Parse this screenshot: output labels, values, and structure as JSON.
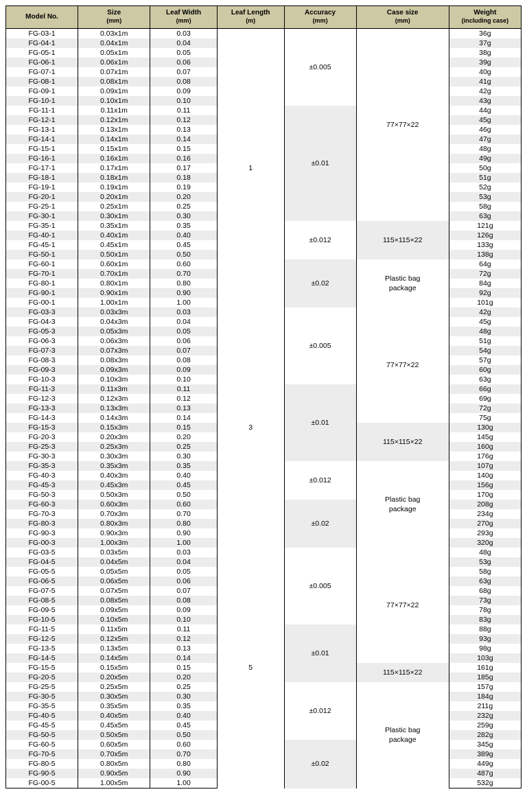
{
  "headers": {
    "model": "Model No.",
    "size": "Size",
    "size_unit": "(mm)",
    "leafWidth": "Leaf Width",
    "leafWidth_unit": "(mm)",
    "leafLength": "Leaf Length",
    "leafLength_unit": "(m)",
    "accuracy": "Accuracy",
    "accuracy_unit": "(mm)",
    "caseSize": "Case size",
    "caseSize_unit": "(mm)",
    "weight": "Weight",
    "weight_unit": "(including case)"
  },
  "colWidths": [
    "14%",
    "14%",
    "13%",
    "13%",
    "14%",
    "18%",
    "14%"
  ],
  "accuracyLabels": {
    "a005": "±0.005",
    "a01": "±0.01",
    "a012": "±0.012",
    "a02": "±0.02"
  },
  "caseLabels": {
    "c77": "77×77×22",
    "c115": "115×115×22",
    "plastic1": "Plastic bag",
    "plastic2": "package"
  },
  "lengthLabels": {
    "l1": "1",
    "l3": "3",
    "l5": "5"
  },
  "groups": [
    {
      "length": "l1",
      "rows": [
        {
          "m": "FG-03-1",
          "s": "0.03x1m",
          "w": "0.03",
          "wt": "36g"
        },
        {
          "m": "FG-04-1",
          "s": "0.04x1m",
          "w": "0.04",
          "wt": "37g"
        },
        {
          "m": "FG-05-1",
          "s": "0.05x1m",
          "w": "0.05",
          "wt": "38g"
        },
        {
          "m": "FG-06-1",
          "s": "0.06x1m",
          "w": "0.06",
          "wt": "39g"
        },
        {
          "m": "FG-07-1",
          "s": "0.07x1m",
          "w": "0.07",
          "wt": "40g"
        },
        {
          "m": "FG-08-1",
          "s": "0.08x1m",
          "w": "0.08",
          "wt": "41g"
        },
        {
          "m": "FG-09-1",
          "s": "0.09x1m",
          "w": "0.09",
          "wt": "42g"
        },
        {
          "m": "FG-10-1",
          "s": "0.10x1m",
          "w": "0.10",
          "wt": "43g"
        },
        {
          "m": "FG-11-1",
          "s": "0.11x1m",
          "w": "0.11",
          "wt": "44g"
        },
        {
          "m": "FG-12-1",
          "s": "0.12x1m",
          "w": "0.12",
          "wt": "45g"
        },
        {
          "m": "FG-13-1",
          "s": "0.13x1m",
          "w": "0.13",
          "wt": "46g"
        },
        {
          "m": "FG-14-1",
          "s": "0.14x1m",
          "w": "0.14",
          "wt": "47g"
        },
        {
          "m": "FG-15-1",
          "s": "0.15x1m",
          "w": "0.15",
          "wt": "48g"
        },
        {
          "m": "FG-16-1",
          "s": "0.16x1m",
          "w": "0.16",
          "wt": "49g"
        },
        {
          "m": "FG-17-1",
          "s": "0.17x1m",
          "w": "0.17",
          "wt": "50g"
        },
        {
          "m": "FG-18-1",
          "s": "0.18x1m",
          "w": "0.18",
          "wt": "51g"
        },
        {
          "m": "FG-19-1",
          "s": "0.19x1m",
          "w": "0.19",
          "wt": "52g"
        },
        {
          "m": "FG-20-1",
          "s": "0.20x1m",
          "w": "0.20",
          "wt": "53g"
        },
        {
          "m": "FG-25-1",
          "s": "0.25x1m",
          "w": "0.25",
          "wt": "58g"
        },
        {
          "m": "FG-30-1",
          "s": "0.30x1m",
          "w": "0.30",
          "wt": "63g"
        },
        {
          "m": "FG-35-1",
          "s": "0.35x1m",
          "w": "0.35",
          "wt": "121g"
        },
        {
          "m": "FG-40-1",
          "s": "0.40x1m",
          "w": "0.40",
          "wt": "126g"
        },
        {
          "m": "FG-45-1",
          "s": "0.45x1m",
          "w": "0.45",
          "wt": "133g"
        },
        {
          "m": "FG-50-1",
          "s": "0.50x1m",
          "w": "0.50",
          "wt": "138g"
        },
        {
          "m": "FG-60-1",
          "s": "0.60x1m",
          "w": "0.60",
          "wt": "64g"
        },
        {
          "m": "FG-70-1",
          "s": "0.70x1m",
          "w": "0.70",
          "wt": "72g"
        },
        {
          "m": "FG-80-1",
          "s": "0.80x1m",
          "w": "0.80",
          "wt": "84g"
        },
        {
          "m": "FG-90-1",
          "s": "0.90x1m",
          "w": "0.90",
          "wt": "92g"
        },
        {
          "m": "FG-00-1",
          "s": "1.00x1m",
          "w": "1.00",
          "wt": "101g"
        }
      ],
      "accuracy": [
        {
          "span": 8,
          "key": "a005",
          "gray": false
        },
        {
          "span": 12,
          "key": "a01",
          "gray": true
        },
        {
          "span": 4,
          "key": "a012",
          "gray": false
        },
        {
          "span": 5,
          "key": "a02",
          "gray": true
        }
      ],
      "case": [
        {
          "span": 20,
          "key": "c77",
          "gray": false,
          "plastic": false
        },
        {
          "span": 4,
          "key": "c115",
          "gray": true,
          "plastic": false
        },
        {
          "span": 5,
          "key": "plastic",
          "gray": false,
          "plastic": true
        }
      ]
    },
    {
      "length": "l3",
      "rows": [
        {
          "m": "FG-03-3",
          "s": "0.03x3m",
          "w": "0.03",
          "wt": "42g"
        },
        {
          "m": "FG-04-3",
          "s": "0.04x3m",
          "w": "0.04",
          "wt": "45g"
        },
        {
          "m": "FG-05-3",
          "s": "0.05x3m",
          "w": "0.05",
          "wt": "48g"
        },
        {
          "m": "FG-06-3",
          "s": "0.06x3m",
          "w": "0.06",
          "wt": "51g"
        },
        {
          "m": "FG-07-3",
          "s": "0.07x3m",
          "w": "0.07",
          "wt": "54g"
        },
        {
          "m": "FG-08-3",
          "s": "0.08x3m",
          "w": "0.08",
          "wt": "57g"
        },
        {
          "m": "FG-09-3",
          "s": "0.09x3m",
          "w": "0.09",
          "wt": "60g"
        },
        {
          "m": "FG-10-3",
          "s": "0.10x3m",
          "w": "0.10",
          "wt": "63g"
        },
        {
          "m": "FG-11-3",
          "s": "0.11x3m",
          "w": "0.11",
          "wt": "66g"
        },
        {
          "m": "FG-12-3",
          "s": "0.12x3m",
          "w": "0.12",
          "wt": "69g"
        },
        {
          "m": "FG-13-3",
          "s": "0.13x3m",
          "w": "0.13",
          "wt": "72g"
        },
        {
          "m": "FG-14-3",
          "s": "0.14x3m",
          "w": "0.14",
          "wt": "75g"
        },
        {
          "m": "FG-15-3",
          "s": "0.15x3m",
          "w": "0.15",
          "wt": "130g"
        },
        {
          "m": "FG-20-3",
          "s": "0.20x3m",
          "w": "0.20",
          "wt": "145g"
        },
        {
          "m": "FG-25-3",
          "s": "0.25x3m",
          "w": "0.25",
          "wt": "160g"
        },
        {
          "m": "FG-30-3",
          "s": "0.30x3m",
          "w": "0.30",
          "wt": "176g"
        },
        {
          "m": "FG-35-3",
          "s": "0.35x3m",
          "w": "0.35",
          "wt": "107g"
        },
        {
          "m": "FG-40-3",
          "s": "0.40x3m",
          "w": "0.40",
          "wt": "140g"
        },
        {
          "m": "FG-45-3",
          "s": "0.45x3m",
          "w": "0.45",
          "wt": "156g"
        },
        {
          "m": "FG-50-3",
          "s": "0.50x3m",
          "w": "0.50",
          "wt": "170g"
        },
        {
          "m": "FG-60-3",
          "s": "0.60x3m",
          "w": "0.60",
          "wt": "208g"
        },
        {
          "m": "FG-70-3",
          "s": "0.70x3m",
          "w": "0.70",
          "wt": "234g"
        },
        {
          "m": "FG-80-3",
          "s": "0.80x3m",
          "w": "0.80",
          "wt": "270g"
        },
        {
          "m": "FG-90-3",
          "s": "0.90x3m",
          "w": "0.90",
          "wt": "293g"
        },
        {
          "m": "FG-00-3",
          "s": "1.00x3m",
          "w": "1.00",
          "wt": "320g"
        }
      ],
      "accuracy": [
        {
          "span": 8,
          "key": "a005",
          "gray": false
        },
        {
          "span": 8,
          "key": "a01",
          "gray": true
        },
        {
          "span": 4,
          "key": "a012",
          "gray": false
        },
        {
          "span": 5,
          "key": "a02",
          "gray": true
        }
      ],
      "case": [
        {
          "span": 12,
          "key": "c77",
          "gray": false,
          "plastic": false
        },
        {
          "span": 4,
          "key": "c115",
          "gray": true,
          "plastic": false
        },
        {
          "span": 9,
          "key": "plastic",
          "gray": false,
          "plastic": true
        }
      ]
    },
    {
      "length": "l5",
      "rows": [
        {
          "m": "FG-03-5",
          "s": "0.03x5m",
          "w": "0.03",
          "wt": "48g"
        },
        {
          "m": "FG-04-5",
          "s": "0.04x5m",
          "w": "0.04",
          "wt": "53g"
        },
        {
          "m": "FG-05-5",
          "s": "0.05x5m",
          "w": "0.05",
          "wt": "58g"
        },
        {
          "m": "FG-06-5",
          "s": "0.06x5m",
          "w": "0.06",
          "wt": "63g"
        },
        {
          "m": "FG-07-5",
          "s": "0.07x5m",
          "w": "0.07",
          "wt": "68g"
        },
        {
          "m": "FG-08-5",
          "s": "0.08x5m",
          "w": "0.08",
          "wt": "73g"
        },
        {
          "m": "FG-09-5",
          "s": "0.09x5m",
          "w": "0.09",
          "wt": "78g"
        },
        {
          "m": "FG-10-5",
          "s": "0.10x5m",
          "w": "0.10",
          "wt": "83g"
        },
        {
          "m": "FG-11-5",
          "s": "0.11x5m",
          "w": "0.11",
          "wt": "88g"
        },
        {
          "m": "FG-12-5",
          "s": "0.12x5m",
          "w": "0.12",
          "wt": "93g"
        },
        {
          "m": "FG-13-5",
          "s": "0.13x5m",
          "w": "0.13",
          "wt": "98g"
        },
        {
          "m": "FG-14-5",
          "s": "0.14x5m",
          "w": "0.14",
          "wt": "103g"
        },
        {
          "m": "FG-15-5",
          "s": "0.15x5m",
          "w": "0.15",
          "wt": "161g"
        },
        {
          "m": "FG-20-5",
          "s": "0.20x5m",
          "w": "0.20",
          "wt": "185g"
        },
        {
          "m": "FG-25-5",
          "s": "0.25x5m",
          "w": "0.25",
          "wt": "157g"
        },
        {
          "m": "FG-30-5",
          "s": "0.30x5m",
          "w": "0.30",
          "wt": "184g"
        },
        {
          "m": "FG-35-5",
          "s": "0.35x5m",
          "w": "0.35",
          "wt": "211g"
        },
        {
          "m": "FG-40-5",
          "s": "0.40x5m",
          "w": "0.40",
          "wt": "232g"
        },
        {
          "m": "FG-45-5",
          "s": "0.45x5m",
          "w": "0.45",
          "wt": "259g"
        },
        {
          "m": "FG-50-5",
          "s": "0.50x5m",
          "w": "0.50",
          "wt": "282g"
        },
        {
          "m": "FG-60-5",
          "s": "0.60x5m",
          "w": "0.60",
          "wt": "345g"
        },
        {
          "m": "FG-70-5",
          "s": "0.70x5m",
          "w": "0.70",
          "wt": "389g"
        },
        {
          "m": "FG-80-5",
          "s": "0.80x5m",
          "w": "0.80",
          "wt": "449g"
        },
        {
          "m": "FG-90-5",
          "s": "0.90x5m",
          "w": "0.90",
          "wt": "487g"
        },
        {
          "m": "FG-00-5",
          "s": "1.00x5m",
          "w": "1.00",
          "wt": "532g"
        }
      ],
      "accuracy": [
        {
          "span": 8,
          "key": "a005",
          "gray": false
        },
        {
          "span": 6,
          "key": "a01",
          "gray": true
        },
        {
          "span": 6,
          "key": "a012",
          "gray": false
        },
        {
          "span": 5,
          "key": "a02",
          "gray": true
        }
      ],
      "case": [
        {
          "span": 12,
          "key": "c77",
          "gray": false,
          "plastic": false
        },
        {
          "span": 2,
          "key": "c115",
          "gray": true,
          "plastic": false
        },
        {
          "span": 11,
          "key": "plastic",
          "gray": false,
          "plastic": true
        }
      ]
    }
  ]
}
